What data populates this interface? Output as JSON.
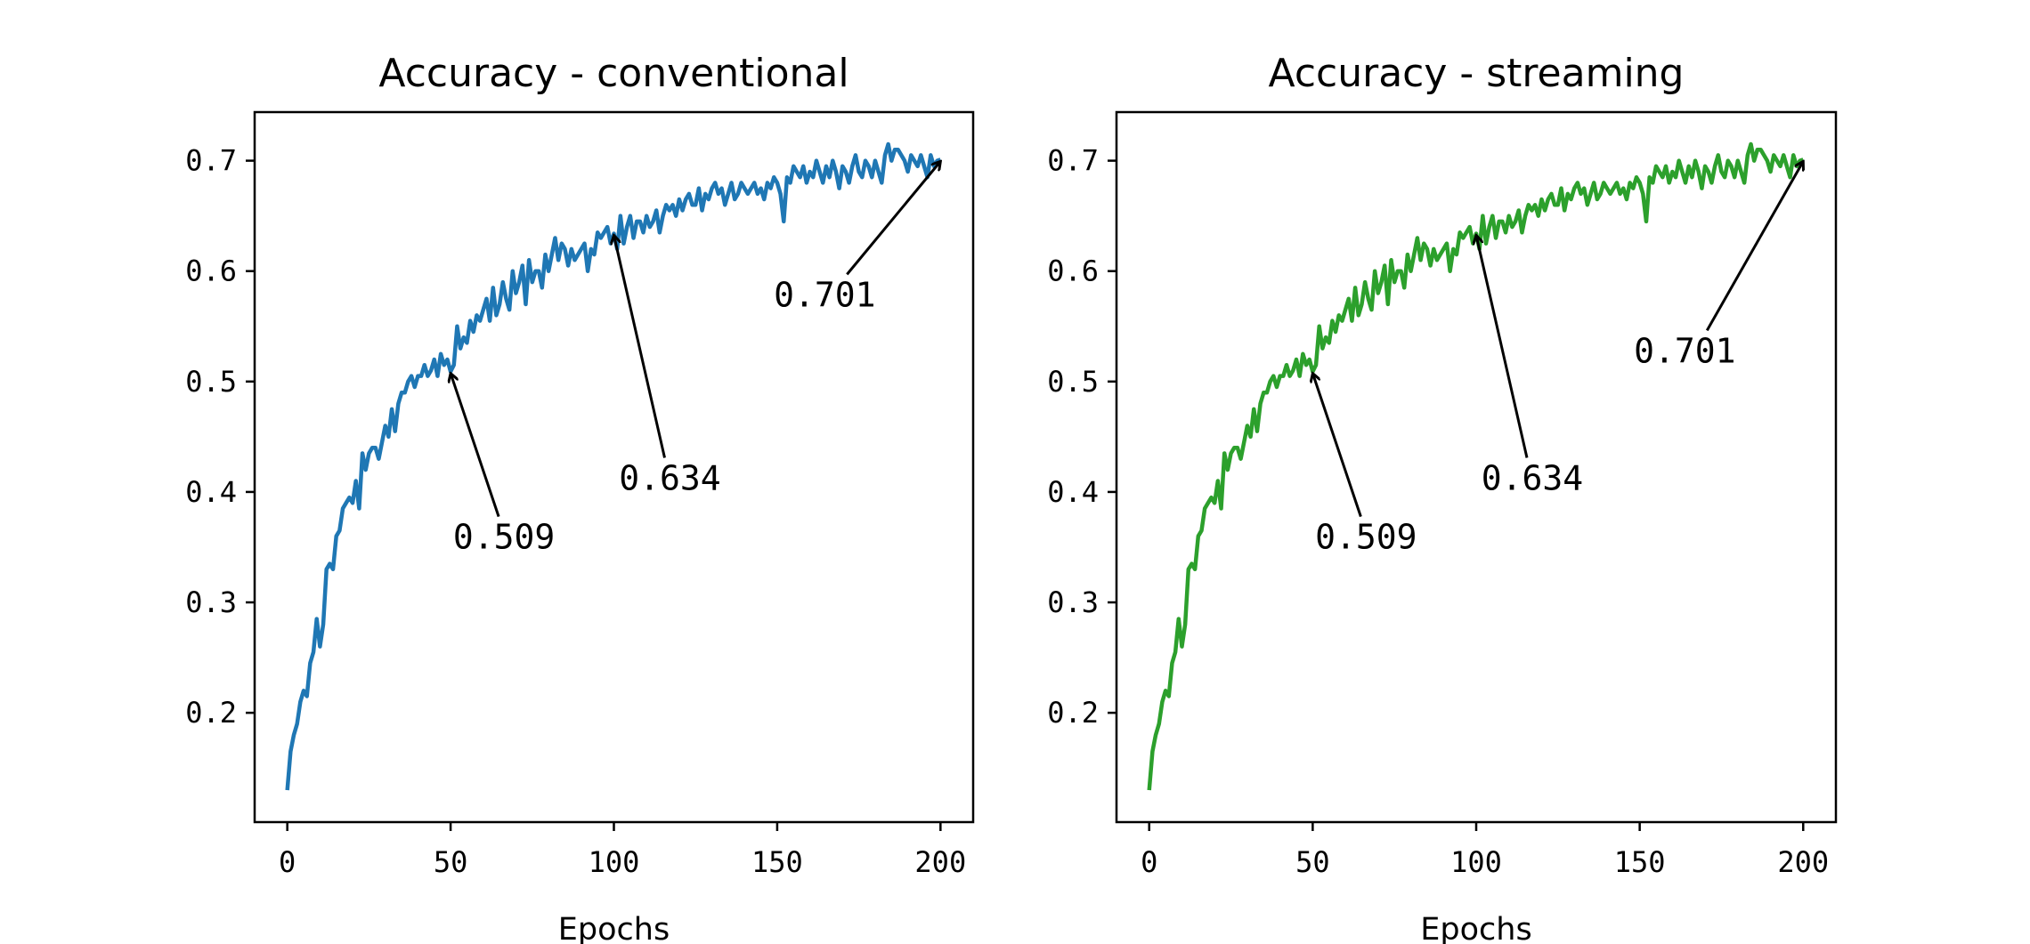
{
  "chart_data": [
    {
      "type": "line",
      "title": "Accuracy - conventional",
      "xlabel": "Epochs",
      "xlim": [
        -10,
        210
      ],
      "xticks": [
        0,
        50,
        100,
        150,
        200
      ],
      "ylim": [
        0.101,
        0.744
      ],
      "yticks": [
        0.2,
        0.3,
        0.4,
        0.5,
        0.6,
        0.7
      ],
      "x": [
        0,
        1,
        2,
        3,
        4,
        5,
        6,
        7,
        8,
        9,
        10,
        11,
        12,
        13,
        14,
        15,
        16,
        17,
        18,
        19,
        20,
        21,
        22,
        23,
        24,
        25,
        26,
        27,
        28,
        29,
        30,
        31,
        32,
        33,
        34,
        35,
        36,
        37,
        38,
        39,
        40,
        41,
        42,
        43,
        44,
        45,
        46,
        47,
        48,
        49,
        50,
        51,
        52,
        53,
        54,
        55,
        56,
        57,
        58,
        59,
        60,
        61,
        62,
        63,
        64,
        65,
        66,
        67,
        68,
        69,
        70,
        71,
        72,
        73,
        74,
        75,
        76,
        77,
        78,
        79,
        80,
        81,
        82,
        83,
        84,
        85,
        86,
        87,
        88,
        89,
        90,
        91,
        92,
        93,
        94,
        95,
        96,
        97,
        98,
        99,
        100,
        101,
        102,
        103,
        104,
        105,
        106,
        107,
        108,
        109,
        110,
        111,
        112,
        113,
        114,
        115,
        116,
        117,
        118,
        119,
        120,
        121,
        122,
        123,
        124,
        125,
        126,
        127,
        128,
        129,
        130,
        131,
        132,
        133,
        134,
        135,
        136,
        137,
        138,
        139,
        140,
        141,
        142,
        143,
        144,
        145,
        146,
        147,
        148,
        149,
        150,
        151,
        152,
        153,
        154,
        155,
        156,
        157,
        158,
        159,
        160,
        161,
        162,
        163,
        164,
        165,
        166,
        167,
        168,
        169,
        170,
        171,
        172,
        173,
        174,
        175,
        176,
        177,
        178,
        179,
        180,
        181,
        182,
        183,
        184,
        185,
        186,
        187,
        188,
        189,
        190,
        191,
        192,
        193,
        194,
        195,
        196,
        197,
        198,
        199,
        200
      ],
      "series": [
        {
          "color": "#1f77b4",
          "values": [
            0.13,
            0.165,
            0.18,
            0.19,
            0.21,
            0.22,
            0.215,
            0.245,
            0.255,
            0.285,
            0.26,
            0.28,
            0.33,
            0.335,
            0.33,
            0.36,
            0.365,
            0.385,
            0.39,
            0.395,
            0.39,
            0.41,
            0.385,
            0.435,
            0.42,
            0.435,
            0.44,
            0.44,
            0.43,
            0.445,
            0.46,
            0.45,
            0.475,
            0.455,
            0.48,
            0.49,
            0.49,
            0.5,
            0.505,
            0.495,
            0.505,
            0.505,
            0.515,
            0.505,
            0.51,
            0.52,
            0.505,
            0.525,
            0.515,
            0.52,
            0.509,
            0.515,
            0.55,
            0.53,
            0.54,
            0.535,
            0.555,
            0.545,
            0.56,
            0.555,
            0.565,
            0.575,
            0.555,
            0.585,
            0.56,
            0.57,
            0.59,
            0.575,
            0.565,
            0.6,
            0.58,
            0.59,
            0.605,
            0.57,
            0.61,
            0.59,
            0.6,
            0.6,
            0.585,
            0.615,
            0.6,
            0.615,
            0.63,
            0.61,
            0.625,
            0.62,
            0.605,
            0.62,
            0.61,
            0.615,
            0.62,
            0.625,
            0.6,
            0.62,
            0.615,
            0.635,
            0.63,
            0.635,
            0.64,
            0.625,
            0.634,
            0.62,
            0.65,
            0.625,
            0.64,
            0.65,
            0.63,
            0.645,
            0.645,
            0.635,
            0.65,
            0.64,
            0.645,
            0.655,
            0.635,
            0.65,
            0.66,
            0.655,
            0.66,
            0.65,
            0.665,
            0.655,
            0.665,
            0.67,
            0.66,
            0.66,
            0.675,
            0.655,
            0.67,
            0.665,
            0.675,
            0.68,
            0.67,
            0.675,
            0.66,
            0.67,
            0.68,
            0.665,
            0.67,
            0.68,
            0.675,
            0.67,
            0.675,
            0.68,
            0.67,
            0.675,
            0.665,
            0.68,
            0.675,
            0.685,
            0.68,
            0.67,
            0.645,
            0.685,
            0.68,
            0.695,
            0.69,
            0.685,
            0.695,
            0.68,
            0.69,
            0.685,
            0.7,
            0.69,
            0.68,
            0.695,
            0.685,
            0.7,
            0.69,
            0.675,
            0.695,
            0.69,
            0.68,
            0.695,
            0.705,
            0.69,
            0.685,
            0.7,
            0.695,
            0.685,
            0.7,
            0.69,
            0.68,
            0.705,
            0.715,
            0.7,
            0.71,
            0.71,
            0.705,
            0.7,
            0.69,
            0.705,
            0.7,
            0.695,
            0.705,
            0.695,
            0.685,
            0.705,
            0.695,
            0.7,
            0.701
          ]
        }
      ],
      "annotations": [
        {
          "text": "0.509",
          "x": 50,
          "y": 0.509
        },
        {
          "text": "0.634",
          "x": 100,
          "y": 0.634
        },
        {
          "text": "0.701",
          "x": 200,
          "y": 0.701
        }
      ]
    },
    {
      "type": "line",
      "title": "Accuracy - streaming",
      "xlabel": "Epochs",
      "xlim": [
        -10,
        210
      ],
      "xticks": [
        0,
        50,
        100,
        150,
        200
      ],
      "ylim": [
        0.101,
        0.744
      ],
      "yticks": [
        0.2,
        0.3,
        0.4,
        0.5,
        0.6,
        0.7
      ],
      "x": [
        0,
        1,
        2,
        3,
        4,
        5,
        6,
        7,
        8,
        9,
        10,
        11,
        12,
        13,
        14,
        15,
        16,
        17,
        18,
        19,
        20,
        21,
        22,
        23,
        24,
        25,
        26,
        27,
        28,
        29,
        30,
        31,
        32,
        33,
        34,
        35,
        36,
        37,
        38,
        39,
        40,
        41,
        42,
        43,
        44,
        45,
        46,
        47,
        48,
        49,
        50,
        51,
        52,
        53,
        54,
        55,
        56,
        57,
        58,
        59,
        60,
        61,
        62,
        63,
        64,
        65,
        66,
        67,
        68,
        69,
        70,
        71,
        72,
        73,
        74,
        75,
        76,
        77,
        78,
        79,
        80,
        81,
        82,
        83,
        84,
        85,
        86,
        87,
        88,
        89,
        90,
        91,
        92,
        93,
        94,
        95,
        96,
        97,
        98,
        99,
        100,
        101,
        102,
        103,
        104,
        105,
        106,
        107,
        108,
        109,
        110,
        111,
        112,
        113,
        114,
        115,
        116,
        117,
        118,
        119,
        120,
        121,
        122,
        123,
        124,
        125,
        126,
        127,
        128,
        129,
        130,
        131,
        132,
        133,
        134,
        135,
        136,
        137,
        138,
        139,
        140,
        141,
        142,
        143,
        144,
        145,
        146,
        147,
        148,
        149,
        150,
        151,
        152,
        153,
        154,
        155,
        156,
        157,
        158,
        159,
        160,
        161,
        162,
        163,
        164,
        165,
        166,
        167,
        168,
        169,
        170,
        171,
        172,
        173,
        174,
        175,
        176,
        177,
        178,
        179,
        180,
        181,
        182,
        183,
        184,
        185,
        186,
        187,
        188,
        189,
        190,
        191,
        192,
        193,
        194,
        195,
        196,
        197,
        198,
        199,
        200
      ],
      "series": [
        {
          "color": "#2ca02c",
          "values": [
            0.13,
            0.165,
            0.18,
            0.19,
            0.21,
            0.22,
            0.215,
            0.245,
            0.255,
            0.285,
            0.26,
            0.28,
            0.33,
            0.335,
            0.33,
            0.36,
            0.365,
            0.385,
            0.39,
            0.395,
            0.39,
            0.41,
            0.385,
            0.435,
            0.42,
            0.435,
            0.44,
            0.44,
            0.43,
            0.445,
            0.46,
            0.45,
            0.475,
            0.455,
            0.48,
            0.49,
            0.49,
            0.5,
            0.505,
            0.495,
            0.505,
            0.505,
            0.515,
            0.505,
            0.51,
            0.52,
            0.505,
            0.525,
            0.515,
            0.52,
            0.509,
            0.515,
            0.55,
            0.53,
            0.54,
            0.535,
            0.555,
            0.545,
            0.56,
            0.555,
            0.565,
            0.575,
            0.555,
            0.585,
            0.56,
            0.57,
            0.59,
            0.575,
            0.565,
            0.6,
            0.58,
            0.59,
            0.605,
            0.57,
            0.61,
            0.59,
            0.6,
            0.6,
            0.585,
            0.615,
            0.6,
            0.615,
            0.63,
            0.61,
            0.625,
            0.62,
            0.605,
            0.62,
            0.61,
            0.615,
            0.62,
            0.625,
            0.6,
            0.62,
            0.615,
            0.635,
            0.63,
            0.635,
            0.64,
            0.625,
            0.634,
            0.62,
            0.65,
            0.625,
            0.64,
            0.65,
            0.63,
            0.645,
            0.645,
            0.635,
            0.65,
            0.64,
            0.645,
            0.655,
            0.635,
            0.65,
            0.66,
            0.655,
            0.66,
            0.65,
            0.665,
            0.655,
            0.665,
            0.67,
            0.66,
            0.66,
            0.675,
            0.655,
            0.67,
            0.665,
            0.675,
            0.68,
            0.67,
            0.675,
            0.66,
            0.67,
            0.68,
            0.665,
            0.67,
            0.68,
            0.675,
            0.67,
            0.675,
            0.68,
            0.67,
            0.675,
            0.665,
            0.68,
            0.675,
            0.685,
            0.68,
            0.67,
            0.645,
            0.685,
            0.68,
            0.695,
            0.69,
            0.685,
            0.695,
            0.68,
            0.69,
            0.685,
            0.7,
            0.69,
            0.68,
            0.695,
            0.685,
            0.7,
            0.69,
            0.675,
            0.695,
            0.69,
            0.68,
            0.695,
            0.705,
            0.69,
            0.685,
            0.7,
            0.695,
            0.685,
            0.7,
            0.69,
            0.68,
            0.705,
            0.715,
            0.7,
            0.71,
            0.71,
            0.705,
            0.7,
            0.69,
            0.705,
            0.7,
            0.695,
            0.705,
            0.695,
            0.685,
            0.705,
            0.695,
            0.7,
            0.701
          ]
        }
      ],
      "annotations": [
        {
          "text": "0.509",
          "x": 50,
          "y": 0.509
        },
        {
          "text": "0.634",
          "x": 100,
          "y": 0.634
        },
        {
          "text": "0.701",
          "x": 200,
          "y": 0.701
        }
      ]
    }
  ]
}
